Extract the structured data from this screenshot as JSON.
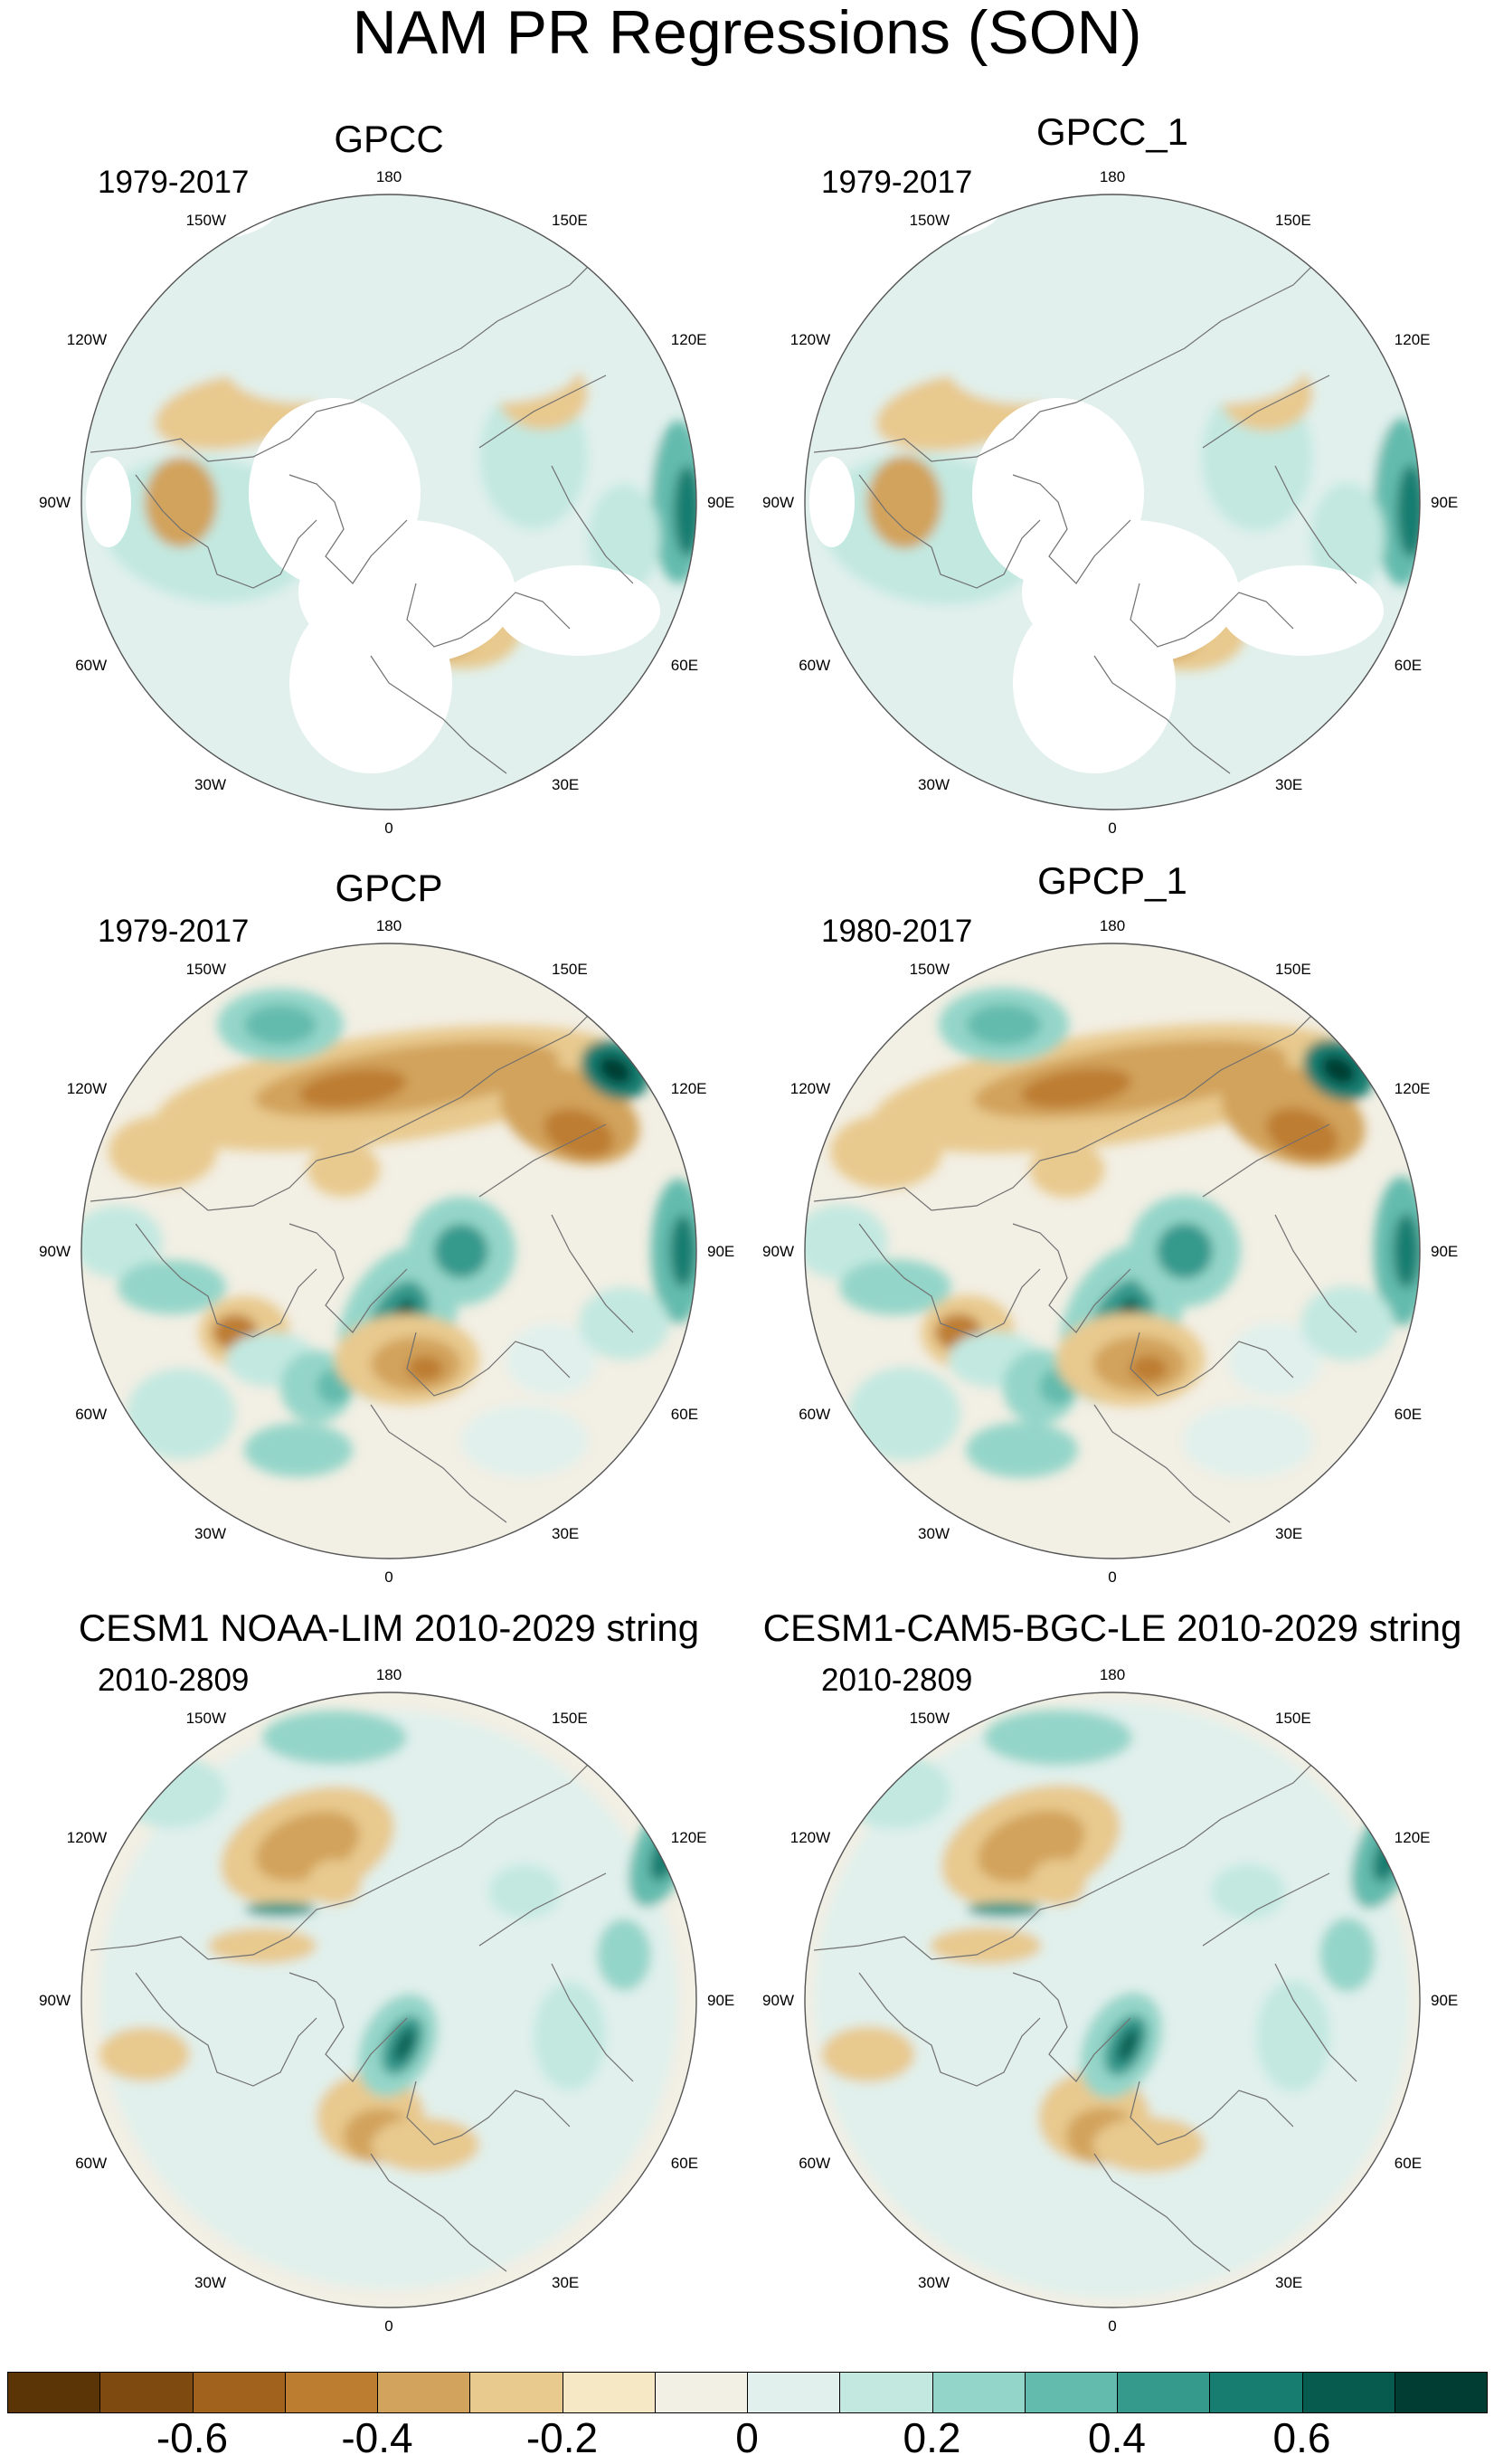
{
  "title": "NAM PR Regressions (SON)",
  "panels": [
    {
      "title": "GPCC",
      "period": "1979-2017",
      "style": "gpcc"
    },
    {
      "title": "GPCC_1",
      "period": "1979-2017",
      "style": "gpcc"
    },
    {
      "title": "GPCP",
      "period": "1979-2017",
      "style": "gpcp"
    },
    {
      "title": "GPCP_1",
      "period": "1980-2017",
      "style": "gpcp"
    },
    {
      "title": "CESM1 NOAA-LIM 2010-2029 string",
      "period": "2010-2809",
      "style": "model"
    },
    {
      "title": "CESM1-CAM5-BGC-LE 2010-2029 string",
      "period": "2010-2809",
      "style": "model"
    }
  ],
  "longitude_labels": [
    "180",
    "150E",
    "120E",
    "90E",
    "60E",
    "30E",
    "0",
    "30W",
    "60W",
    "90W",
    "120W",
    "150W"
  ],
  "colorbar": {
    "colors": [
      "#5c3507",
      "#7e4a0f",
      "#a0621c",
      "#bd7d30",
      "#d2a35c",
      "#e8c98e",
      "#f6e8c4",
      "#f2efe4",
      "#e1f0ec",
      "#c2e8e0",
      "#94d5c9",
      "#63bbad",
      "#35998c",
      "#167d70",
      "#065a4e",
      "#013d33"
    ],
    "labels": [
      "-0.6",
      "-0.4",
      "-0.2",
      "0",
      "0.2",
      "0.4",
      "0.6"
    ]
  }
}
